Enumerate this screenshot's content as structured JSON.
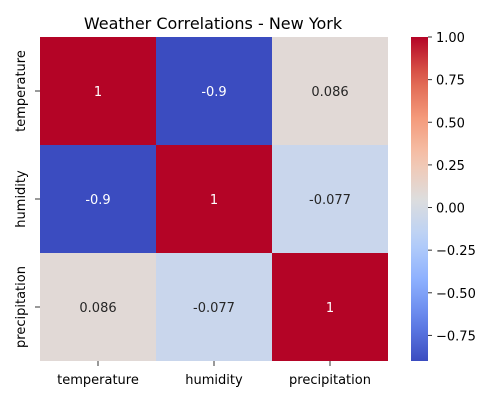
{
  "chart_data": {
    "type": "heatmap",
    "title": "Weather Correlations - New York",
    "xlabel": "",
    "ylabel": "",
    "x_categories": [
      "temperature",
      "humidity",
      "precipitation"
    ],
    "y_categories": [
      "temperature",
      "humidity",
      "precipitation"
    ],
    "values": [
      [
        1,
        -0.9,
        0.086
      ],
      [
        -0.9,
        1,
        -0.077
      ],
      [
        0.086,
        -0.077,
        1
      ]
    ],
    "cell_labels": [
      [
        "1",
        "-0.9",
        "0.086"
      ],
      [
        "-0.9",
        "1",
        "-0.077"
      ],
      [
        "0.086",
        "-0.077",
        "1"
      ]
    ],
    "colormap": "coolwarm",
    "colorbar": {
      "vmin": -0.9,
      "vmax": 1.0,
      "ticks": [
        1.0,
        0.75,
        0.5,
        0.25,
        0.0,
        -0.25,
        -0.5,
        -0.75
      ],
      "tick_labels": [
        "1.00",
        "0.75",
        "0.50",
        "0.25",
        "0.00",
        "−0.25",
        "−0.50",
        "−0.75"
      ]
    },
    "grid": false,
    "legend": "colorbar-right"
  }
}
